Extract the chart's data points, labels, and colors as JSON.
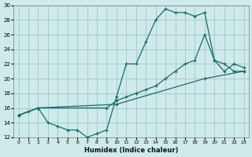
{
  "xlabel": "Humidex (Indice chaleur)",
  "bg_color": "#ceeaea",
  "grid_color": "#a8cccc",
  "line_color": "#1a6b6b",
  "xlim": [
    -0.5,
    23.5
  ],
  "ylim": [
    12,
    30
  ],
  "xticks": [
    0,
    1,
    2,
    3,
    4,
    5,
    6,
    7,
    8,
    9,
    10,
    11,
    12,
    13,
    14,
    15,
    16,
    17,
    18,
    19,
    20,
    21,
    22,
    23
  ],
  "yticks": [
    12,
    14,
    16,
    18,
    20,
    22,
    24,
    26,
    28,
    30
  ],
  "line1_x": [
    0,
    1,
    2,
    3,
    4,
    5,
    6,
    7,
    8,
    9,
    10,
    11,
    12,
    13,
    14,
    15,
    16,
    17,
    18,
    19,
    20,
    21,
    22,
    23
  ],
  "line1_y": [
    15,
    15.5,
    16,
    14,
    13.5,
    13,
    13,
    12,
    12.5,
    13,
    17.5,
    22,
    22,
    25,
    28,
    29.5,
    29,
    29,
    28.5,
    29,
    22.5,
    21,
    22,
    21.5
  ],
  "line2_x": [
    0,
    2,
    9,
    10,
    11,
    12,
    13,
    14,
    15,
    16,
    17,
    18,
    19,
    20,
    21,
    22,
    23
  ],
  "line2_y": [
    15,
    16,
    16,
    17,
    17.5,
    18,
    18.5,
    19,
    20,
    21,
    22,
    22.5,
    26,
    22.5,
    22,
    21,
    21
  ],
  "line3_x": [
    0,
    2,
    10,
    19,
    23
  ],
  "line3_y": [
    15,
    16,
    16.5,
    20,
    21
  ]
}
